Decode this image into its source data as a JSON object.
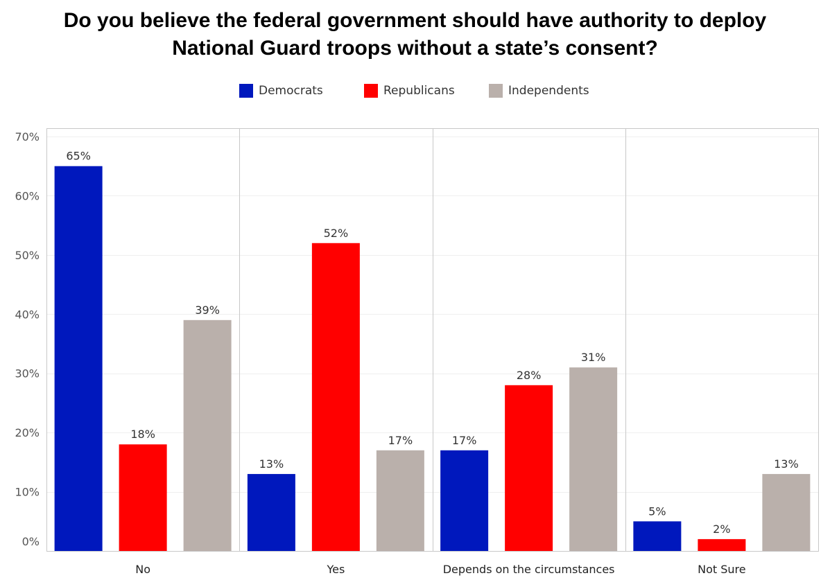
{
  "title": {
    "line1": "Do you believe the federal government should have authority to deploy",
    "line2": "National Guard troops without a state’s consent?"
  },
  "legend": [
    {
      "name": "Democrats",
      "color": "#0018bd"
    },
    {
      "name": "Republicans",
      "color": "#ff0000"
    },
    {
      "name": "Independents",
      "color": "#bab0ab"
    }
  ],
  "chart_data": {
    "type": "bar",
    "categories": [
      "No",
      "Yes",
      "Depends on the circumstances",
      "Not Sure"
    ],
    "series": [
      {
        "name": "Democrats",
        "color": "#0018bd",
        "values": [
          65,
          13,
          17,
          5
        ],
        "labels": [
          "65%",
          "13%",
          "17%",
          "5%"
        ]
      },
      {
        "name": "Republicans",
        "color": "#ff0000",
        "values": [
          18,
          52,
          28,
          2
        ],
        "labels": [
          "18%",
          "52%",
          "28%",
          "2%"
        ]
      },
      {
        "name": "Independents",
        "color": "#bab0ab",
        "values": [
          39,
          17,
          31,
          13
        ],
        "labels": [
          "39%",
          "17%",
          "31%",
          "13%"
        ]
      }
    ],
    "ylim": [
      0,
      70
    ],
    "yticks": [
      0,
      10,
      20,
      30,
      40,
      50,
      60,
      70
    ],
    "ytick_labels": [
      "0%",
      "10%",
      "20%",
      "30%",
      "40%",
      "50%",
      "60%",
      "70%"
    ],
    "grid": true,
    "legend_position": "top-center"
  }
}
